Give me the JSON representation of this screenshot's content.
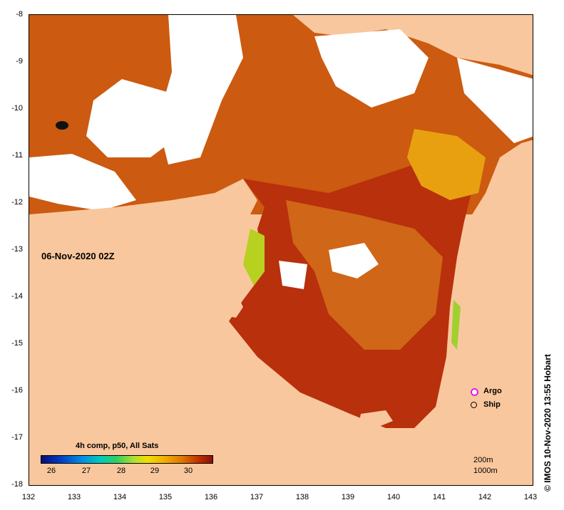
{
  "map": {
    "date_label": "06-Nov-2020 02Z",
    "y_axis_labels": [
      "-8",
      "-9",
      "-10",
      "-11",
      "-12",
      "-13",
      "-14",
      "-15",
      "-16",
      "-17",
      "-18"
    ],
    "x_axis_labels": [
      "132",
      "133",
      "134",
      "135",
      "136",
      "137",
      "138",
      "139",
      "140",
      "141",
      "142",
      "143"
    ],
    "colors": {
      "land": "#f9c79d",
      "cloud": "#ffffff",
      "sst_warm": "#b8300c",
      "sst_mid": "#d87414",
      "sst_cool": "#e8a010"
    }
  },
  "colorbar": {
    "title": "4h comp, p50, All Sats",
    "ticks": [
      "26",
      "27",
      "28",
      "29",
      "30"
    ]
  },
  "legend": {
    "argo_label": "Argo",
    "ship_label": "Ship",
    "argo_icon": "magenta-circle-icon",
    "ship_icon": "black-circle-icon"
  },
  "contours": {
    "c200": "200m",
    "c1000": "1000m"
  },
  "credit": "© IMOS 10-Nov-2020 13:55 Hobart"
}
